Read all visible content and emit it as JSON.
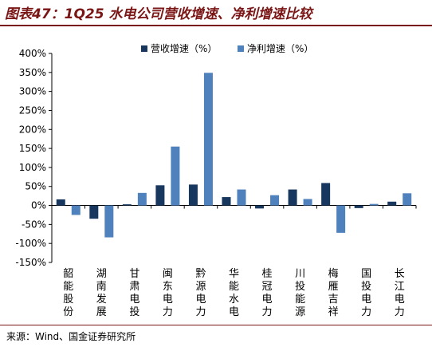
{
  "header": {
    "title": "图表47：1Q25 水电公司营收增速、净利增速比较"
  },
  "footer": {
    "source": "来源：Wind、国金证券研究所"
  },
  "colors": {
    "revenue": "#17375e",
    "profit": "#4f81bd",
    "title": "#7a1616"
  },
  "chart_data": {
    "type": "bar",
    "categories": [
      "韶能股份",
      "湖南发展",
      "甘肃电投",
      "闽东电力",
      "黔源电力",
      "华能水电",
      "桂冠电力",
      "川投能源",
      "梅雁吉祥",
      "国投电力",
      "长江电力"
    ],
    "series": [
      {
        "name": "营收增速（%）",
        "values": [
          16,
          -35,
          3,
          53,
          55,
          22,
          -8,
          42,
          59,
          -7,
          10
        ]
      },
      {
        "name": "净利增速（%）",
        "values": [
          -25,
          -84,
          33,
          155,
          349,
          42,
          27,
          17,
          -72,
          4,
          32
        ]
      }
    ],
    "ylim": [
      -150,
      400
    ],
    "yticks": [
      "-150%",
      "-100%",
      "-50%",
      "0%",
      "50%",
      "100%",
      "150%",
      "200%",
      "250%",
      "300%",
      "350%",
      "400%"
    ],
    "ytick_values": [
      -150,
      -100,
      -50,
      0,
      50,
      100,
      150,
      200,
      250,
      300,
      350,
      400
    ],
    "legend_position": "top",
    "grid": false
  }
}
